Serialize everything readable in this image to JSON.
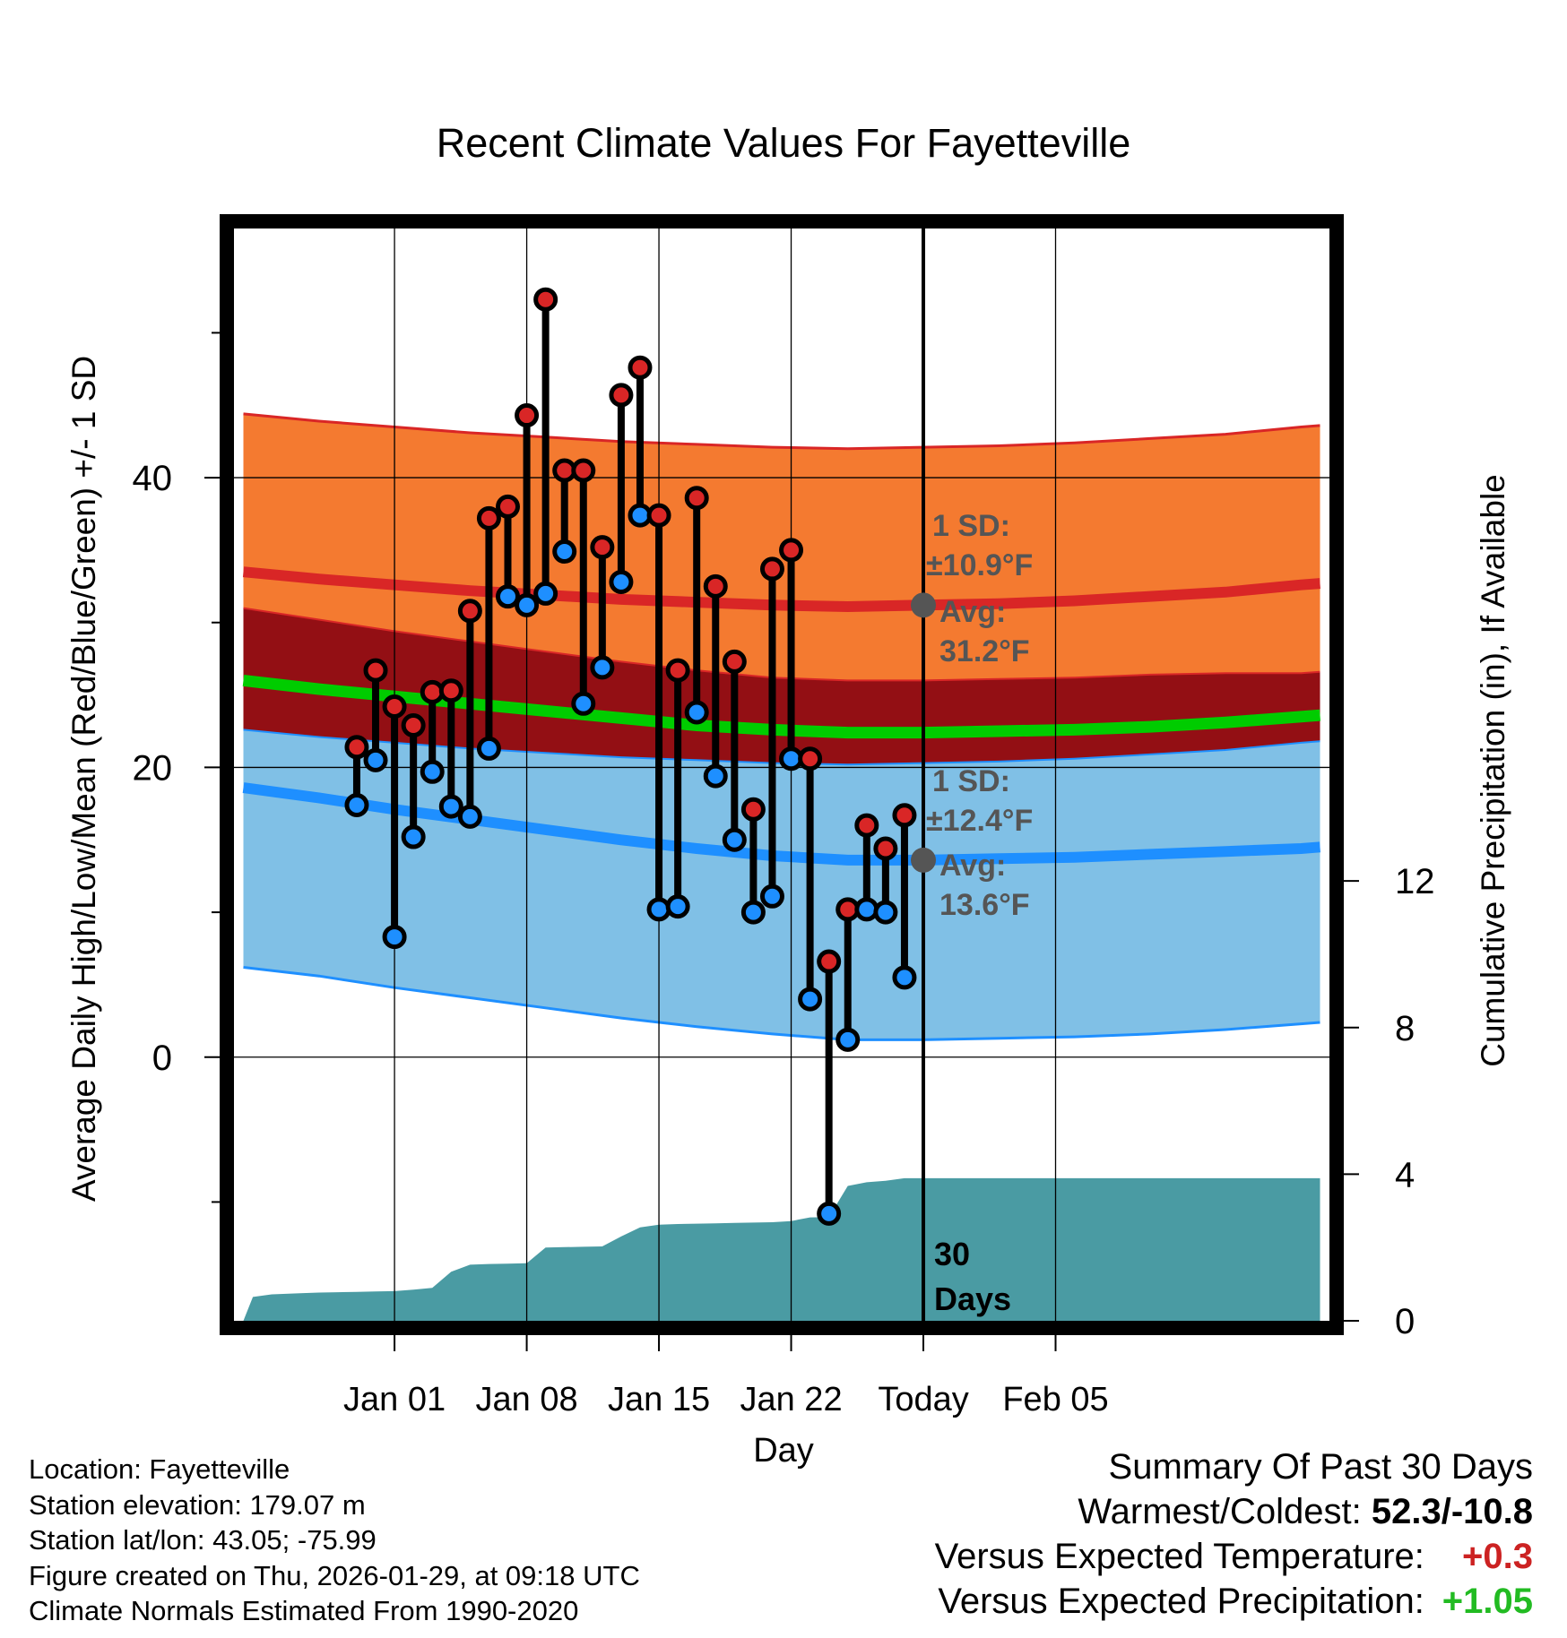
{
  "chart_data": {
    "type": "line",
    "title": "Recent Climate Values For Fayetteville",
    "xlabel": "Day",
    "ylabel_left": "Average Daily High/Low/Mean (Red/Blue/Green) +/- 1 SD",
    "ylabel_right": "Cumulative Precipitation (in), If Available",
    "xlim": [
      -4.5,
      53.5
    ],
    "ylim_left": [
      -18.2,
      57.2
    ],
    "ylim_right": [
      0,
      29.8
    ],
    "x_ticks": [
      {
        "day": 4,
        "label": "Jan 01"
      },
      {
        "day": 11,
        "label": "Jan 08"
      },
      {
        "day": 18,
        "label": "Jan 15"
      },
      {
        "day": 25,
        "label": "Jan 22"
      },
      {
        "day": 32,
        "label": "Today"
      },
      {
        "day": 39,
        "label": "Feb 05"
      }
    ],
    "y_ticks_left": [
      {
        "value": 0,
        "label": "0"
      },
      {
        "value": 20,
        "label": "20"
      },
      {
        "value": 40,
        "label": "40"
      }
    ],
    "y_minor_left": [
      -10,
      10,
      30,
      50
    ],
    "y_ticks_right": [
      {
        "value": 0,
        "label": "0"
      },
      {
        "value": 4,
        "label": "4"
      },
      {
        "value": 8,
        "label": "8"
      },
      {
        "value": 12,
        "label": "12"
      }
    ],
    "normals_x": [
      -4,
      0,
      4,
      8,
      12,
      16,
      20,
      24,
      28,
      32,
      36,
      40,
      44,
      48,
      52,
      53
    ],
    "normal_high": [
      33.5,
      33.0,
      32.6,
      32.2,
      31.9,
      31.6,
      31.4,
      31.2,
      31.1,
      31.2,
      31.3,
      31.5,
      31.8,
      32.1,
      32.6,
      32.7
    ],
    "normal_high_sd": [
      10.9,
      10.9,
      10.9,
      10.9,
      10.9,
      10.9,
      10.9,
      10.9,
      10.9,
      10.9,
      10.9,
      10.9,
      10.9,
      10.9,
      10.9,
      10.9
    ],
    "normal_low": [
      18.6,
      17.9,
      17.1,
      16.4,
      15.7,
      15.0,
      14.4,
      13.9,
      13.6,
      13.6,
      13.7,
      13.8,
      14.0,
      14.2,
      14.4,
      14.5
    ],
    "normal_low_sd": [
      12.4,
      12.3,
      12.3,
      12.3,
      12.3,
      12.3,
      12.3,
      12.3,
      12.4,
      12.4,
      12.4,
      12.4,
      12.4,
      12.3,
      12.1,
      12.1
    ],
    "normal_mean": [
      26.0,
      25.4,
      24.9,
      24.4,
      23.9,
      23.4,
      22.9,
      22.6,
      22.4,
      22.4,
      22.5,
      22.6,
      22.8,
      23.1,
      23.5,
      23.6
    ],
    "observed": {
      "days": [
        2,
        3,
        4,
        5,
        6,
        7,
        8,
        9,
        10,
        11,
        12,
        13,
        14,
        15,
        16,
        17,
        18,
        19,
        20,
        21,
        22,
        23,
        24,
        25,
        26,
        27,
        28,
        29,
        30,
        31
      ],
      "high": [
        21.4,
        26.7,
        24.2,
        22.9,
        25.2,
        25.3,
        30.8,
        37.2,
        38.0,
        44.3,
        52.3,
        40.5,
        40.5,
        35.2,
        45.7,
        47.6,
        37.4,
        26.7,
        38.6,
        32.5,
        27.3,
        17.1,
        33.7,
        35.0,
        20.6,
        6.6,
        10.2,
        16.0,
        14.4,
        16.7
      ],
      "low": [
        17.4,
        20.5,
        8.3,
        15.2,
        19.7,
        17.3,
        16.6,
        21.3,
        31.8,
        31.2,
        32.0,
        34.9,
        24.4,
        26.9,
        32.8,
        37.4,
        10.2,
        10.4,
        23.8,
        19.4,
        15.0,
        10.0,
        11.1,
        20.6,
        4.0,
        -10.8,
        1.2,
        10.2,
        10.0,
        5.5
      ]
    },
    "precip_cumulative": {
      "days": [
        -4,
        -3.5,
        -2.5,
        -1,
        0,
        1,
        2,
        3,
        4,
        5,
        6,
        7,
        8,
        9,
        10,
        11,
        12,
        13,
        14,
        15,
        16,
        17,
        18,
        19,
        20,
        21,
        22,
        23,
        24,
        25,
        26,
        27,
        28,
        29,
        30,
        31,
        32,
        33,
        53
      ],
      "values": [
        0.0,
        0.65,
        0.72,
        0.75,
        0.77,
        0.78,
        0.79,
        0.8,
        0.81,
        0.85,
        0.9,
        1.34,
        1.53,
        1.55,
        1.56,
        1.57,
        2.0,
        2.01,
        2.02,
        2.03,
        2.3,
        2.55,
        2.62,
        2.64,
        2.65,
        2.66,
        2.67,
        2.68,
        2.69,
        2.72,
        2.82,
        2.83,
        3.68,
        3.78,
        3.82,
        3.89,
        3.89,
        3.89,
        3.89
      ]
    },
    "today_marker": {
      "day": 32,
      "label": "30 Days"
    },
    "annotations": {
      "high_sd_label": "1 SD:",
      "high_sd_value": "±10.9°F",
      "high_avg_label": "Avg:",
      "high_avg_value": "31.2°F",
      "high_avg_point": 31.2,
      "low_sd_label": "1 SD:",
      "low_sd_value": "±12.4°F",
      "low_avg_label": "Avg:",
      "low_avg_value": "13.6°F",
      "low_avg_point": 13.6
    }
  },
  "colors": {
    "high_band": "#f47a30",
    "high_line": "#d92626",
    "overlap_band": "#930f14",
    "low_band": "#80c0e6",
    "low_line": "#1e8fff",
    "mean_line": "#00cc00",
    "precip": "#4a9ba3",
    "dot_high": "#d92626",
    "dot_low": "#1e8fff",
    "annotation_text": "#555555"
  },
  "footer": {
    "location": "Location: Fayetteville",
    "elevation": "Station elevation: 179.07 m",
    "latlon": "Station lat/lon: 43.05; -75.99",
    "created": "Figure created on Thu, 2026-01-29, at 09:18 UTC",
    "normals": "Climate Normals Estimated From 1990-2020"
  },
  "summary": {
    "title": "Summary Of Past 30 Days",
    "warmest_coldest_label": "Warmest/Coldest:",
    "warmest_coldest_value": "52.3/-10.8",
    "temp_label": "Versus Expected Temperature:",
    "temp_value": "+0.3",
    "precip_label": "Versus Expected Precipitation:",
    "precip_value": "+1.05"
  }
}
